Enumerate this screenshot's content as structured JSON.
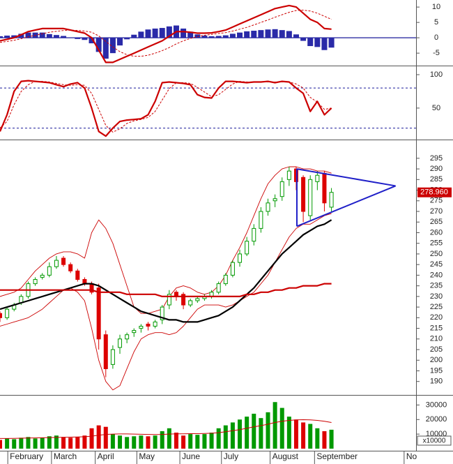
{
  "chart_data": [
    {
      "type": "macd",
      "ylim": [
        -8.6,
        12.3
      ],
      "yticks": [
        10,
        5,
        0,
        -5
      ],
      "lines": [
        {
          "color": "#cc0000",
          "dashed": false,
          "values": [
            -1,
            -0.5,
            0,
            1,
            2,
            2.5,
            3,
            3,
            3,
            3,
            2.5,
            2,
            1.5,
            0,
            -4,
            -8,
            -8,
            -7,
            -6,
            -5,
            -4,
            -3,
            -2,
            -1,
            0.5,
            2,
            2,
            1.8,
            1.5,
            1.5,
            1.6,
            2,
            2.5,
            3.5,
            4.5,
            5.5,
            6.5,
            7.5,
            8.5,
            9.5,
            10,
            10.5,
            10,
            8,
            6,
            5,
            3,
            2.8
          ]
        },
        {
          "color": "#cc0000",
          "dashed": true,
          "values": [
            -1.5,
            -1.2,
            -0.8,
            -0.3,
            0.3,
            0.8,
            1.3,
            1.8,
            2.1,
            2.4,
            2.5,
            2.4,
            2.2,
            1.8,
            0.6,
            -1.2,
            -3,
            -4.5,
            -5.5,
            -6,
            -6,
            -5.7,
            -5,
            -4.2,
            -3.2,
            -2,
            -1,
            -0.2,
            0.4,
            0.8,
            1.1,
            1.4,
            1.7,
            2.2,
            2.8,
            3.4,
            4.2,
            5,
            5.8,
            6.7,
            7.5,
            8.3,
            8.9,
            9,
            8.7,
            8,
            7,
            6
          ]
        }
      ],
      "histogram": {
        "color": "#2a2aa8",
        "values": [
          0.5,
          0.7,
          0.8,
          1.3,
          1.7,
          1.7,
          1.7,
          1.2,
          0.9,
          0.6,
          0,
          -0.4,
          -0.7,
          -1.8,
          -4.6,
          -6.8,
          -5,
          -2.5,
          -0.5,
          1,
          2,
          2.7,
          3,
          3.2,
          3.7,
          4,
          3,
          2,
          1.1,
          0.7,
          0.5,
          0.6,
          0.8,
          1.3,
          1.7,
          2.1,
          2.3,
          2.5,
          2.7,
          2.8,
          2.5,
          2.2,
          1.1,
          -1,
          -2.7,
          -3,
          -4,
          -3.2
        ]
      },
      "levels": [
        0
      ],
      "level_color": "#1a1a9a",
      "level_dashed": false
    },
    {
      "type": "stochastic",
      "ylim": [
        5,
        109.4
      ],
      "yticks": [
        100,
        50
      ],
      "lines": [
        {
          "color": "#cc0000",
          "dashed": false,
          "values": [
            15,
            40,
            75,
            90,
            91,
            90,
            89,
            88,
            85,
            82,
            86,
            88,
            80,
            50,
            15,
            8,
            20,
            30,
            32,
            33,
            34,
            40,
            60,
            88,
            89,
            88,
            87,
            85,
            70,
            66,
            65,
            80,
            90,
            90,
            89,
            88,
            89,
            89,
            90,
            88,
            90,
            89,
            80,
            72,
            45,
            60,
            40,
            50
          ]
        },
        {
          "color": "#cc0000",
          "dashed": true,
          "values": [
            20,
            30,
            55,
            75,
            85,
            90,
            90,
            89,
            87,
            85,
            84,
            85,
            84,
            72,
            48,
            24,
            14,
            19,
            27,
            31,
            33,
            36,
            45,
            62,
            79,
            88,
            88,
            87,
            81,
            74,
            67,
            70,
            78,
            86,
            90,
            89,
            89,
            89,
            89,
            89,
            89,
            89,
            86,
            80,
            66,
            59,
            48,
            50
          ]
        }
      ],
      "levels": [
        80,
        20
      ],
      "level_color": "#1a1a9a",
      "level_dashed": true
    },
    {
      "type": "candlestick",
      "ylim": [
        184,
        302.5
      ],
      "yticks": [
        190,
        195,
        200,
        205,
        210,
        215,
        220,
        225,
        230,
        235,
        240,
        245,
        250,
        255,
        260,
        265,
        270,
        275,
        280,
        285,
        290,
        295
      ],
      "up_color": "#009900",
      "down_color": "#dd0000",
      "open": [
        222,
        220,
        224,
        227,
        230,
        236,
        239,
        240,
        244,
        248,
        245,
        242,
        238,
        236,
        234,
        212,
        198,
        206,
        210,
        213,
        215,
        217,
        216,
        219,
        226,
        232,
        231,
        226,
        228,
        229,
        230,
        232,
        236,
        240,
        246,
        250,
        256,
        262,
        270,
        275,
        277,
        285,
        290,
        286,
        268,
        284,
        288,
        272
      ],
      "high": [
        223,
        225,
        227,
        231,
        237,
        239,
        241,
        246,
        249,
        249,
        246,
        243,
        239,
        237,
        236,
        214,
        207,
        212,
        213,
        215,
        217,
        218,
        219,
        226,
        233,
        233,
        232,
        229,
        230,
        231,
        233,
        237,
        241,
        247,
        252,
        258,
        264,
        272,
        276,
        278,
        286,
        291,
        291,
        287,
        287,
        289,
        289,
        281
      ],
      "low": [
        218,
        219,
        223,
        226,
        229,
        235,
        238,
        239,
        243,
        244,
        241,
        237,
        235,
        231,
        205,
        192,
        196,
        203,
        208,
        211,
        213,
        214,
        215,
        217,
        224,
        228,
        224,
        225,
        227,
        228,
        229,
        231,
        235,
        239,
        244,
        249,
        254,
        260,
        268,
        272,
        275,
        282,
        280,
        265,
        266,
        280,
        270,
        270
      ],
      "close": [
        220,
        224,
        226,
        230,
        236,
        238,
        240,
        244,
        247,
        245,
        242,
        238,
        236,
        232,
        210,
        196,
        205,
        210,
        212,
        214,
        216,
        216,
        218,
        225,
        231,
        230,
        226,
        228,
        229,
        230,
        232,
        236,
        240,
        246,
        250,
        256,
        262,
        270,
        274,
        276,
        284,
        289,
        284,
        270,
        285,
        287,
        274,
        278.96
      ],
      "moving_averages": [
        {
          "color": "#000000",
          "values": [
            224,
            225,
            226,
            227,
            228,
            229,
            230,
            231,
            232,
            233,
            234,
            235,
            236,
            236,
            235,
            233,
            231,
            229,
            227,
            225,
            223,
            222,
            221,
            220,
            219,
            219,
            218,
            218,
            218,
            219,
            220,
            221,
            223,
            225,
            228,
            231,
            234,
            238,
            242,
            246,
            250,
            253,
            256,
            259,
            261,
            263,
            264,
            266
          ]
        },
        {
          "color": "#cc0000",
          "values": [
            233,
            233,
            233,
            233,
            233,
            233,
            233,
            233,
            233,
            233,
            233,
            233,
            233,
            233,
            232,
            232,
            232,
            232,
            231,
            231,
            231,
            231,
            231,
            230,
            230,
            230,
            230,
            230,
            230,
            230,
            230,
            230,
            230,
            230,
            230,
            231,
            231,
            232,
            232,
            233,
            233,
            234,
            234,
            235,
            235,
            235,
            236,
            236
          ]
        }
      ],
      "bands": [
        {
          "color": "#cc0000",
          "values": [
            230,
            231,
            232,
            234,
            238,
            242,
            245,
            248,
            250,
            251,
            251,
            250,
            248,
            260,
            266,
            262,
            255,
            245,
            235,
            225,
            222,
            222,
            223,
            224,
            230,
            234,
            235,
            234,
            232,
            231,
            232,
            235,
            240,
            247,
            253,
            260,
            268,
            276,
            283,
            287,
            290,
            291,
            291,
            290,
            290,
            289,
            289,
            288
          ]
        },
        {
          "color": "#cc0000",
          "values": [
            216,
            217,
            218,
            219,
            220,
            222,
            224,
            227,
            230,
            233,
            234,
            232,
            228,
            215,
            200,
            190,
            186,
            188,
            196,
            204,
            210,
            212,
            213,
            213,
            212,
            213,
            216,
            220,
            224,
            226,
            226,
            226,
            225,
            226,
            228,
            230,
            232,
            236,
            240,
            246,
            252,
            258,
            262,
            264,
            264,
            266,
            268,
            269
          ]
        }
      ],
      "trendline_color": "#1f1fc8",
      "trendlines": [
        {
          "x": [
            42.1,
            56.1
          ],
          "y": [
            290,
            282
          ]
        },
        {
          "x": [
            42.1,
            56.1
          ],
          "y": [
            263,
            282
          ]
        },
        {
          "x": [
            42.1,
            42.1
          ],
          "y": [
            263,
            290
          ]
        }
      ],
      "last_price": {
        "value": 278.96,
        "label": "278.960"
      },
      "last_price_color": "#cc0000"
    },
    {
      "type": "volume",
      "ylim": [
        0,
        35000
      ],
      "yticks": [
        30000,
        20000,
        10000
      ],
      "unit_label": "x10000",
      "values": [
        6000,
        7000,
        6500,
        7500,
        8000,
        7000,
        7500,
        8500,
        9000,
        8000,
        7500,
        8000,
        9000,
        14000,
        16000,
        15000,
        10000,
        9000,
        8000,
        8500,
        9000,
        8500,
        9000,
        12000,
        14000,
        11000,
        9000,
        10000,
        9500,
        10000,
        11000,
        14000,
        16000,
        18000,
        20000,
        22000,
        24000,
        21000,
        25000,
        32000,
        28000,
        22000,
        20000,
        18000,
        17000,
        14000,
        12000,
        13000
      ],
      "ma": {
        "color": "#cc0000",
        "values": [
          7000,
          7000,
          7100,
          7200,
          7300,
          7400,
          7500,
          7600,
          7700,
          7800,
          7900,
          8000,
          8200,
          8600,
          9200,
          9800,
          10000,
          10100,
          10100,
          10000,
          9900,
          9800,
          9700,
          9800,
          10000,
          10200,
          10200,
          10300,
          10300,
          10400,
          10600,
          11000,
          11600,
          12300,
          13100,
          14000,
          15000,
          15800,
          16800,
          18000,
          18800,
          19400,
          19800,
          19900,
          19800,
          19400,
          18800,
          18000
        ]
      },
      "xlim": [
        0,
        59
      ],
      "xticks": [
        {
          "value": 1.4,
          "label": "February"
        },
        {
          "value": 7.6,
          "label": "March"
        },
        {
          "value": 13.8,
          "label": "April"
        },
        {
          "value": 19.7,
          "label": "May"
        },
        {
          "value": 25.8,
          "label": "June"
        },
        {
          "value": 31.7,
          "label": "July"
        },
        {
          "value": 38.6,
          "label": "August"
        },
        {
          "value": 44.9,
          "label": "September"
        },
        {
          "value": 57.6,
          "label": "No"
        }
      ]
    }
  ]
}
